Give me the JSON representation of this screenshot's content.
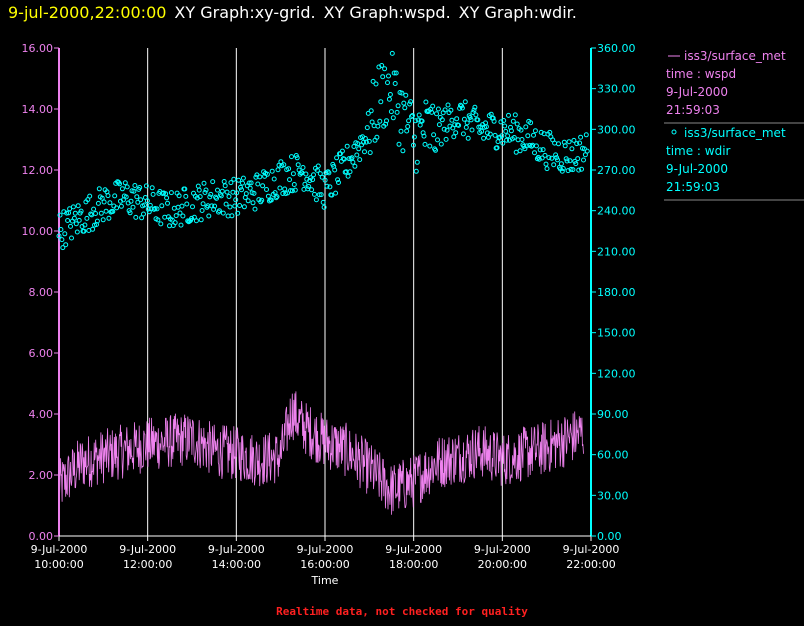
{
  "header": {
    "timestamp": "9-jul-2000,22:00:00",
    "titles": [
      "XY Graph:xy-grid.",
      "XY Graph:wspd.",
      "XY Graph:wdir."
    ]
  },
  "colors": {
    "background": "#000000",
    "timestamp": "#ffff00",
    "title": "#ffffff",
    "wspd": "#ee82ee",
    "wdir": "#00ffff",
    "grid": "#ffffff",
    "footer": "#ff2020"
  },
  "legend": [
    {
      "series": "wspd",
      "marker": "line",
      "lines": [
        "iss3/surface_met",
        "time : wspd",
        "9-Jul-2000",
        "21:59:03"
      ]
    },
    {
      "series": "wdir",
      "marker": "circle",
      "lines": [
        "iss3/surface_met",
        "time : wdir",
        "9-Jul-2000",
        "21:59:03"
      ]
    }
  ],
  "footer": "Realtime data, not checked for quality",
  "chart_data": {
    "type": "line",
    "xlabel": "Time",
    "x_tick_labels": [
      [
        "9-Jul-2000",
        "10:00:00"
      ],
      [
        "9-Jul-2000",
        "12:00:00"
      ],
      [
        "9-Jul-2000",
        "14:00:00"
      ],
      [
        "9-Jul-2000",
        "16:00:00"
      ],
      [
        "9-Jul-2000",
        "18:00:00"
      ],
      [
        "9-Jul-2000",
        "20:00:00"
      ],
      [
        "9-Jul-2000",
        "22:00:00"
      ]
    ],
    "xlim": [
      "9-Jul-2000 10:00:00",
      "9-Jul-2000 22:00:00"
    ],
    "left_axis": {
      "ylim": [
        0,
        16
      ],
      "tick_labels": [
        "0.00",
        "2.00",
        "4.00",
        "6.00",
        "8.00",
        "10.00",
        "12.00",
        "14.00",
        "16.00"
      ]
    },
    "right_axis": {
      "ylim": [
        0,
        360
      ],
      "tick_labels": [
        "0.00",
        "30.00",
        "60.00",
        "90.00",
        "120.00",
        "150.00",
        "180.00",
        "210.00",
        "240.00",
        "270.00",
        "300.00",
        "330.00",
        "360.00"
      ]
    },
    "grid": "vertical",
    "legend_position": "right",
    "series": [
      {
        "name": "wspd",
        "style": "line",
        "axis": "left",
        "x": [
          "10:00",
          "10:30",
          "11:00",
          "11:30",
          "12:00",
          "12:30",
          "13:00",
          "13:30",
          "14:00",
          "14:30",
          "15:00",
          "15:15",
          "15:30",
          "16:00",
          "16:30",
          "17:00",
          "17:30",
          "18:00",
          "18:30",
          "19:00",
          "19:30",
          "20:00",
          "20:30",
          "21:00",
          "21:30",
          "21:50"
        ],
        "values": [
          1.6,
          2.4,
          2.6,
          2.8,
          3.0,
          3.1,
          3.2,
          2.8,
          2.7,
          2.5,
          2.6,
          4.1,
          3.6,
          3.1,
          2.8,
          2.2,
          1.5,
          1.8,
          2.4,
          2.6,
          2.8,
          2.5,
          2.7,
          2.9,
          3.2,
          3.4
        ]
      },
      {
        "name": "wdir",
        "style": "scatter",
        "axis": "right",
        "x": [
          "10:00",
          "10:30",
          "11:00",
          "11:30",
          "12:00",
          "12:30",
          "13:00",
          "13:30",
          "14:00",
          "14:30",
          "15:00",
          "15:30",
          "16:00",
          "16:30",
          "17:00",
          "17:15",
          "17:30",
          "17:45",
          "18:00",
          "18:30",
          "19:00",
          "19:30",
          "20:00",
          "20:30",
          "21:00",
          "21:30",
          "21:55"
        ],
        "values": [
          225,
          235,
          245,
          250,
          245,
          240,
          245,
          250,
          250,
          255,
          265,
          270,
          255,
          275,
          300,
          325,
          330,
          310,
          295,
          300,
          310,
          300,
          300,
          295,
          285,
          280,
          285
        ]
      }
    ]
  }
}
